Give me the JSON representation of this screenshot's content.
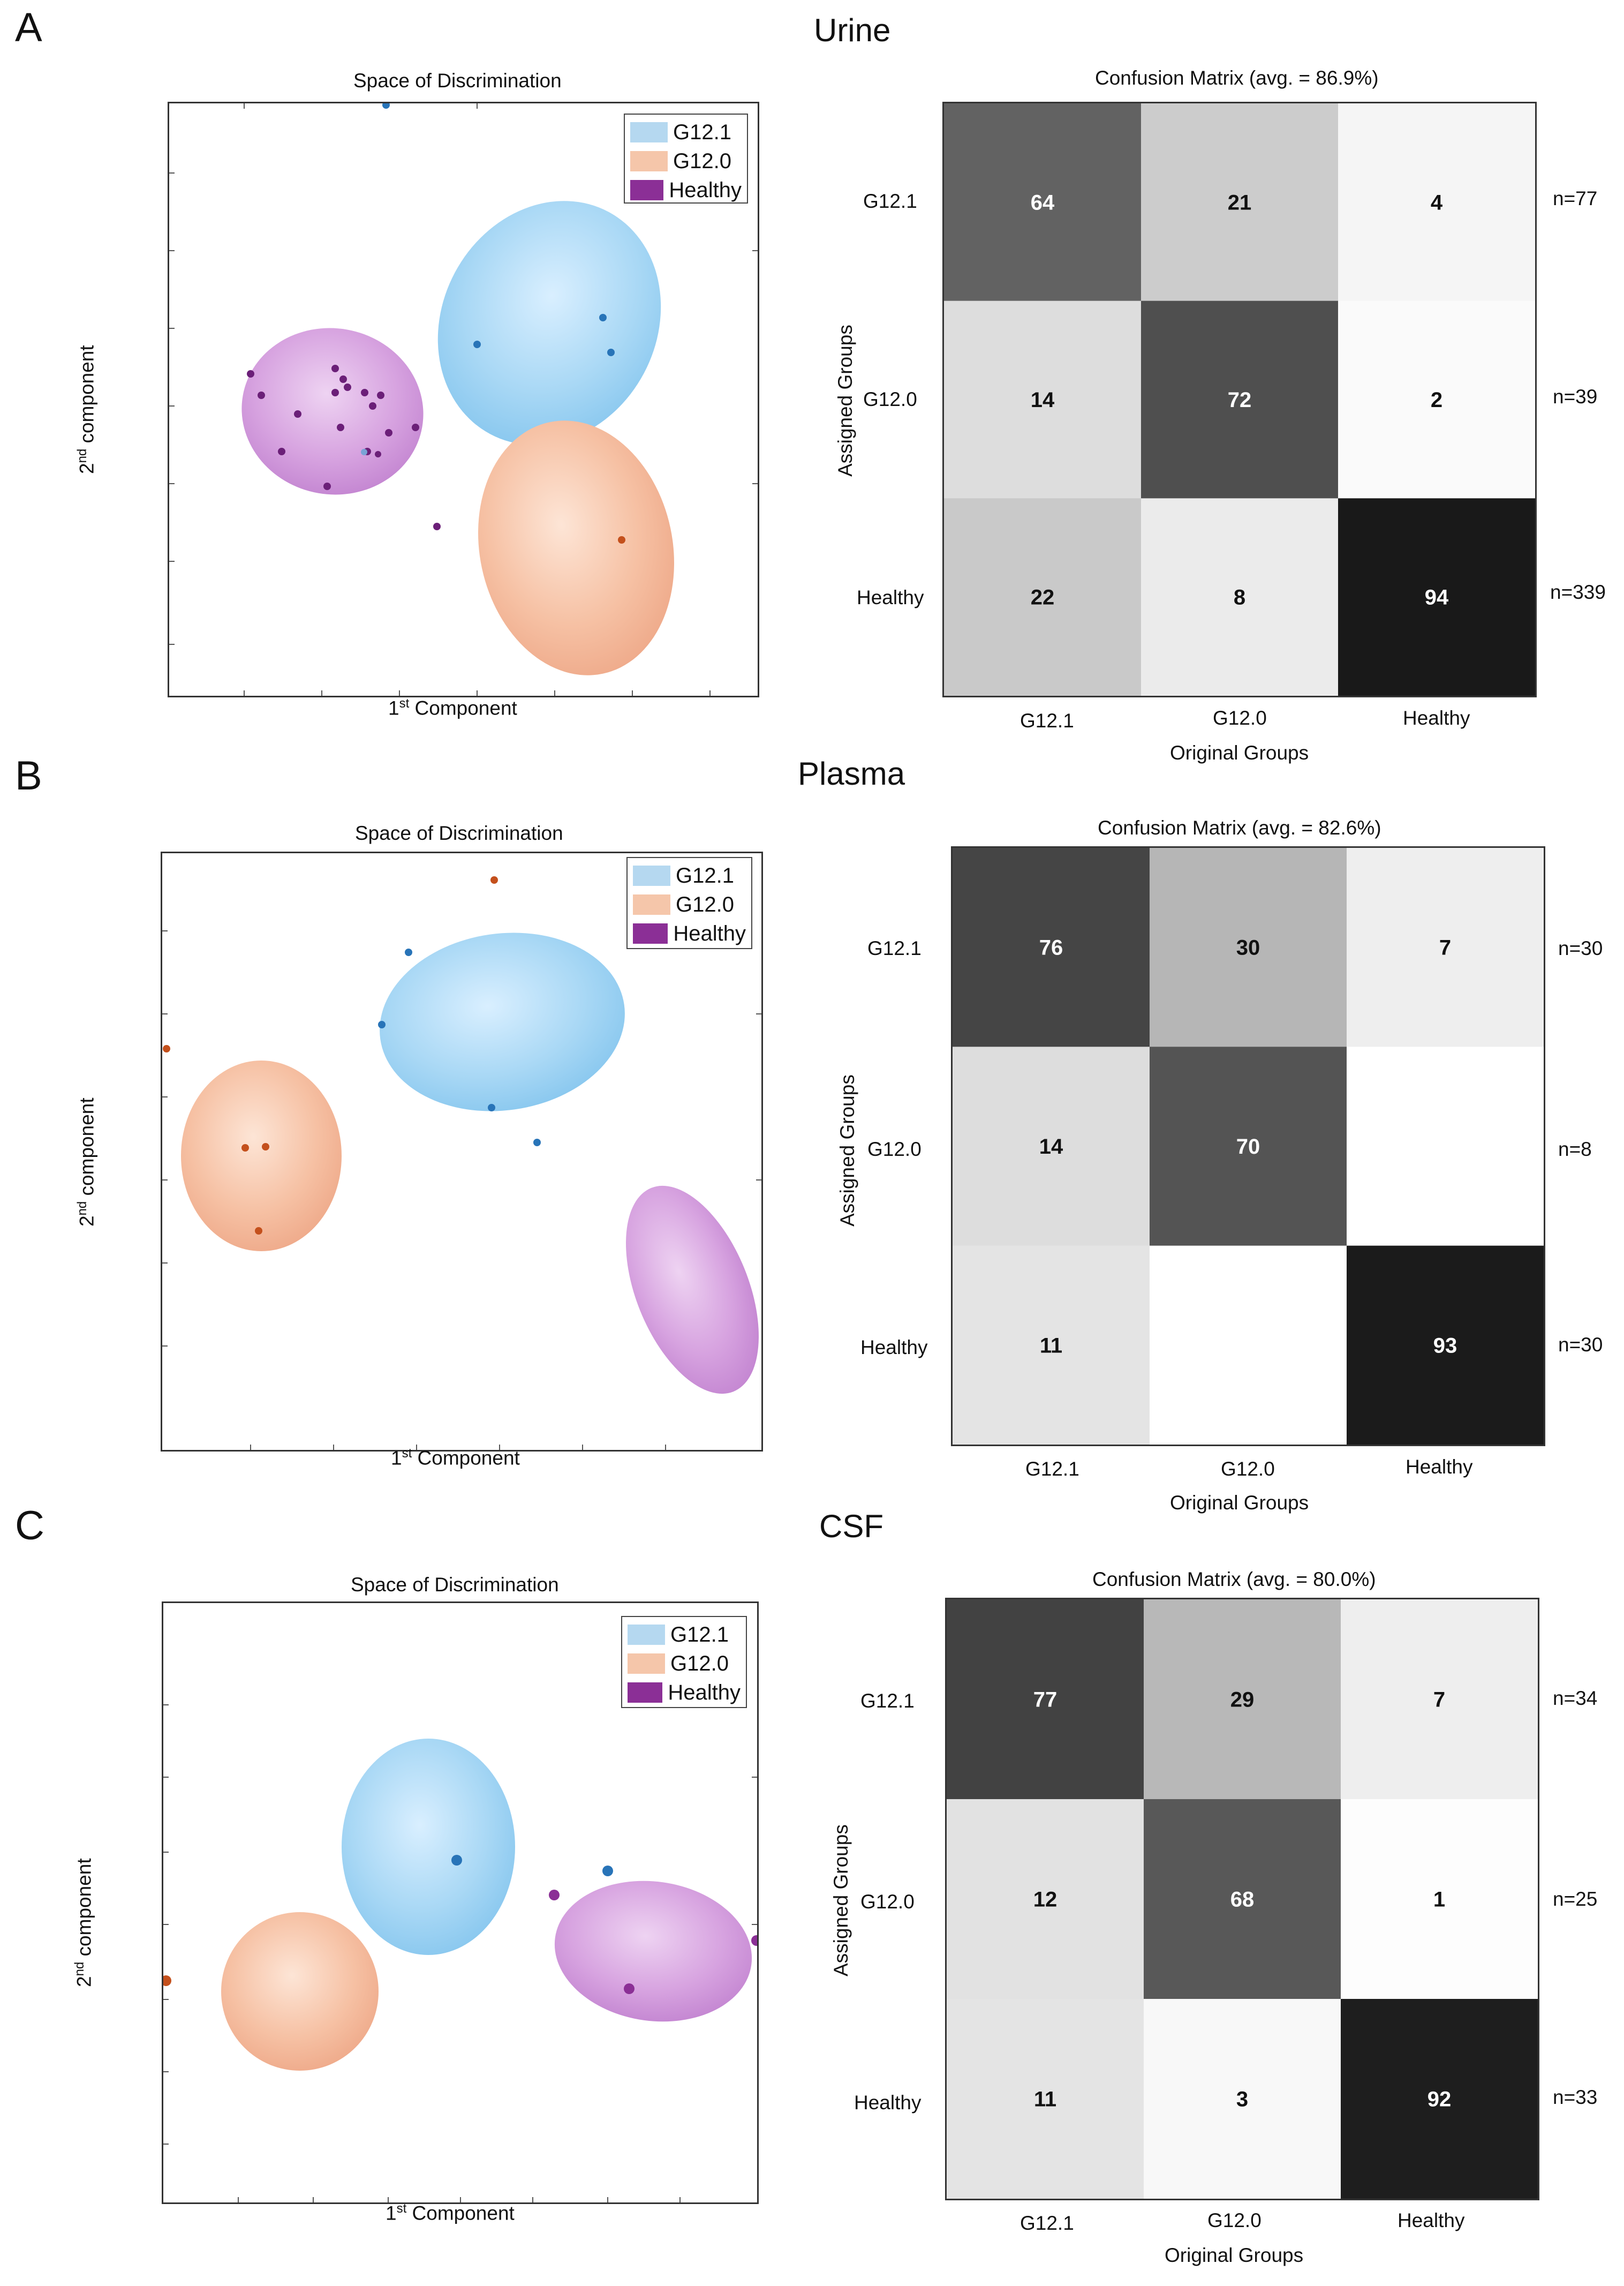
{
  "legend": {
    "items": [
      {
        "label": "G12.1",
        "color": "#b5d8f0"
      },
      {
        "label": "G12.0",
        "color": "#f5c6aa"
      },
      {
        "label": "Healthy",
        "color": "#8b2f96"
      }
    ]
  },
  "axes": {
    "scatter_title": "Space of Discrimination",
    "first_component_prefix": "1",
    "first_component_sup": "st",
    "first_component_suffix": " Component",
    "second_component_prefix": "2",
    "second_component_sup": "nd",
    "second_component_suffix": " component",
    "assigned_groups": "Assigned Groups",
    "original_groups": "Original Groups"
  },
  "panels": [
    {
      "letter": "A",
      "sample": "Urine",
      "cm_title": "Confusion Matrix (avg. = 86.9%)",
      "row_labels": [
        "G12.1",
        "G12.0",
        "Healthy"
      ],
      "col_labels": [
        "G12.1",
        "G12.0",
        "Healthy"
      ],
      "n_labels": [
        "n=77",
        "n=39",
        "n=339"
      ],
      "scatter_top_dot": "G12.1"
    },
    {
      "letter": "B",
      "sample": "Plasma",
      "cm_title": "Confusion Matrix (avg. = 82.6%)",
      "row_labels": [
        "G12.1",
        "G12.0",
        "Healthy"
      ],
      "col_labels": [
        "G12.1",
        "G12.0",
        "Healthy"
      ],
      "n_labels": [
        "n=30",
        "n=8",
        "n=30"
      ]
    },
    {
      "letter": "C",
      "sample": "CSF",
      "cm_title": "Confusion Matrix (avg. = 80.0%)",
      "row_labels": [
        "G12.1",
        "G12.0",
        "Healthy"
      ],
      "col_labels": [
        "G12.1",
        "G12.0",
        "Healthy"
      ],
      "n_labels": [
        "n=34",
        "n=25",
        "n=33"
      ]
    }
  ],
  "chart_data": [
    {
      "type": "heatmap",
      "title": "Confusion Matrix (avg. = 86.9%)",
      "xlabel": "Original Groups",
      "ylabel": "Assigned Groups",
      "rows": [
        "G12.1",
        "G12.0",
        "Healthy"
      ],
      "cols": [
        "G12.1",
        "G12.0",
        "Healthy"
      ],
      "values": [
        [
          "64",
          "21",
          "4"
        ],
        [
          "14",
          "72",
          "2"
        ],
        [
          "22",
          "8",
          "94"
        ]
      ],
      "shade": [
        [
          64,
          21,
          4
        ],
        [
          14,
          72,
          2
        ],
        [
          22,
          8,
          94
        ]
      ]
    },
    {
      "type": "heatmap",
      "title": "Confusion Matrix (avg. = 82.6%)",
      "xlabel": "Original Groups",
      "ylabel": "Assigned Groups",
      "rows": [
        "G12.1",
        "G12.0",
        "Healthy"
      ],
      "cols": [
        "G12.1",
        "G12.0",
        "Healthy"
      ],
      "values": [
        [
          "76",
          "30",
          "7"
        ],
        [
          "14",
          "70",
          ""
        ],
        [
          "11",
          "",
          "93"
        ]
      ],
      "shade": [
        [
          76,
          30,
          7
        ],
        [
          14,
          70,
          0
        ],
        [
          11,
          0,
          93
        ]
      ]
    },
    {
      "type": "heatmap",
      "title": "Confusion Matrix (avg. = 80.0%)",
      "xlabel": "Original Groups",
      "ylabel": "Assigned Groups",
      "rows": [
        "G12.1",
        "G12.0",
        "Healthy"
      ],
      "cols": [
        "G12.1",
        "G12.0",
        "Healthy"
      ],
      "values": [
        [
          "77",
          "29",
          "7"
        ],
        [
          "12",
          "68",
          "1"
        ],
        [
          "11",
          "3",
          "92"
        ]
      ],
      "shade": [
        [
          77,
          29,
          7
        ],
        [
          12,
          68,
          1
        ],
        [
          11,
          3,
          92
        ]
      ]
    }
  ]
}
